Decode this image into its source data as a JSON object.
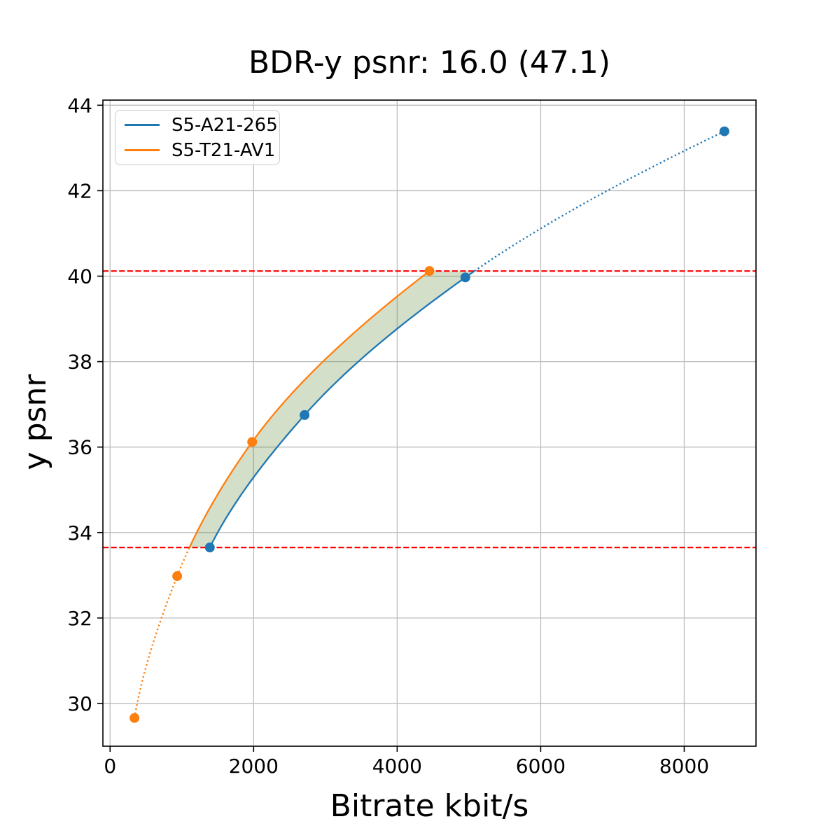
{
  "chart_data": {
    "type": "line",
    "title": "BDR-y psnr: 16.0 (47.1)",
    "xlabel": "Bitrate kbit/s",
    "ylabel": "y psnr",
    "xlim": [
      -100,
      9000
    ],
    "ylim": [
      29.0,
      44.12
    ],
    "xticks": [
      0,
      2000,
      4000,
      6000,
      8000
    ],
    "yticks": [
      30,
      32,
      34,
      36,
      38,
      40,
      42,
      44
    ],
    "grid": true,
    "grid_color": "#bcbcbc",
    "legend_position": "upper-left",
    "series": [
      {
        "name": "S5-A21-265",
        "color": "#1f77b4",
        "x": [
          1390,
          2710,
          4950,
          8560
        ],
        "y": [
          33.65,
          36.75,
          39.97,
          43.39
        ],
        "solid_y_range": [
          33.65,
          40.12
        ],
        "marker": "circle"
      },
      {
        "name": "S5-T21-AV1",
        "color": "#ff7f0e",
        "x": [
          340,
          935,
          1980,
          4450
        ],
        "y": [
          29.66,
          32.98,
          36.12,
          40.12
        ],
        "solid_y_range": [
          33.65,
          40.12
        ],
        "marker": "circle"
      }
    ],
    "overlap_lines": {
      "lower": 33.65,
      "upper": 40.12,
      "color": "#ff0000",
      "style": "dashed"
    },
    "fill_between": {
      "y_range": [
        33.65,
        40.12
      ],
      "color": "#557f2d",
      "opacity": 0.25
    }
  }
}
